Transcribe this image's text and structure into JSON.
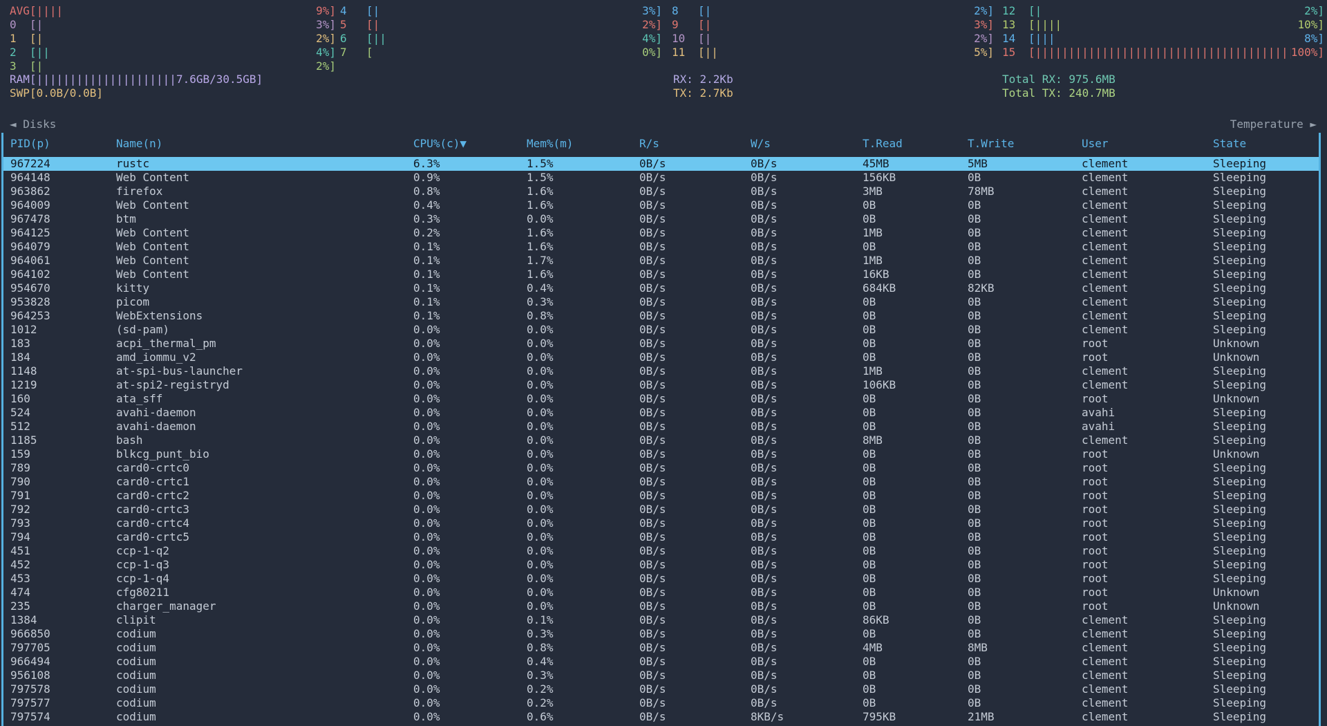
{
  "cpu": {
    "columns": [
      {
        "meters": [
          {
            "label": "AVG",
            "pct": "9%",
            "bars": 4,
            "color": "#de7270"
          },
          {
            "label": "0",
            "pct": "3%",
            "bars": 1,
            "color": "#b495c8"
          },
          {
            "label": "1",
            "pct": "2%",
            "bars": 1,
            "color": "#e2bf7e"
          },
          {
            "label": "2",
            "pct": "4%",
            "bars": 2,
            "color": "#5cc6b5"
          },
          {
            "label": "3",
            "pct": "2%",
            "bars": 1,
            "color": "#a6cc7a"
          }
        ]
      },
      {
        "meters": [
          {
            "label": "4",
            "pct": "3%",
            "bars": 1,
            "color": "#5fb2ea"
          },
          {
            "label": "5",
            "pct": "2%",
            "bars": 1,
            "color": "#e0766f"
          },
          {
            "label": "6",
            "pct": "4%",
            "bars": 2,
            "color": "#5cc6b5"
          },
          {
            "label": "7",
            "pct": "0%",
            "bars": 0,
            "color": "#a6cc7a"
          }
        ]
      },
      {
        "meters": [
          {
            "label": "8",
            "pct": "2%",
            "bars": 1,
            "color": "#5fb2ea"
          },
          {
            "label": "9",
            "pct": "3%",
            "bars": 1,
            "color": "#e0766f"
          },
          {
            "label": "10",
            "pct": "2%",
            "bars": 1,
            "color": "#b495c8"
          },
          {
            "label": "11",
            "pct": "5%",
            "bars": 2,
            "color": "#e2bf7e"
          }
        ]
      },
      {
        "meters": [
          {
            "label": "12",
            "pct": "2%",
            "bars": 1,
            "color": "#5cc6b5"
          },
          {
            "label": "13",
            "pct": "10%",
            "bars": 4,
            "color": "#b3cc6e"
          },
          {
            "label": "14",
            "pct": "8%",
            "bars": 3,
            "color": "#5fb2ea"
          },
          {
            "label": "15",
            "pct": "100%",
            "bars": 60,
            "color": "#e0766f"
          }
        ]
      }
    ]
  },
  "memory": {
    "ram": {
      "label": "RAM",
      "value": "7.6GB/30.5GB",
      "bars": 21,
      "color": "#b9a8e8"
    },
    "swp": {
      "label": "SWP",
      "value": "0.0B/0.0B",
      "bars": 0,
      "color": "#e2bf7e"
    }
  },
  "network": {
    "rx": {
      "text": "RX: 2.2Kb",
      "color": "#b5abe5"
    },
    "tx": {
      "text": "TX: 2.7Kb",
      "color": "#e2bf7e"
    },
    "total_rx": {
      "text": "Total RX: 975.6MB",
      "color": "#6fc9b2"
    },
    "total_tx": {
      "text": "Total TX: 240.7MB",
      "color": "#aed584"
    }
  },
  "nav": {
    "left": "◄ Disks",
    "right": "Temperature ►"
  },
  "process_table": {
    "headers": [
      "PID(p)",
      "Name(n)",
      "CPU%(c)▼",
      "Mem%(m)",
      "R/s",
      "W/s",
      "T.Read",
      "T.Write",
      "User",
      "State"
    ],
    "selected_index": 0,
    "rows": [
      [
        "967224",
        "rustc",
        "6.3%",
        "1.5%",
        "0B/s",
        "0B/s",
        "45MB",
        "5MB",
        "clement",
        "Sleeping"
      ],
      [
        "964148",
        "Web Content",
        "0.9%",
        "1.5%",
        "0B/s",
        "0B/s",
        "156KB",
        "0B",
        "clement",
        "Sleeping"
      ],
      [
        "963862",
        "firefox",
        "0.8%",
        "1.6%",
        "0B/s",
        "0B/s",
        "3MB",
        "78MB",
        "clement",
        "Sleeping"
      ],
      [
        "964009",
        "Web Content",
        "0.4%",
        "1.6%",
        "0B/s",
        "0B/s",
        "0B",
        "0B",
        "clement",
        "Sleeping"
      ],
      [
        "967478",
        "btm",
        "0.3%",
        "0.0%",
        "0B/s",
        "0B/s",
        "0B",
        "0B",
        "clement",
        "Sleeping"
      ],
      [
        "964125",
        "Web Content",
        "0.2%",
        "1.6%",
        "0B/s",
        "0B/s",
        "1MB",
        "0B",
        "clement",
        "Sleeping"
      ],
      [
        "964079",
        "Web Content",
        "0.1%",
        "1.6%",
        "0B/s",
        "0B/s",
        "0B",
        "0B",
        "clement",
        "Sleeping"
      ],
      [
        "964061",
        "Web Content",
        "0.1%",
        "1.7%",
        "0B/s",
        "0B/s",
        "1MB",
        "0B",
        "clement",
        "Sleeping"
      ],
      [
        "964102",
        "Web Content",
        "0.1%",
        "1.6%",
        "0B/s",
        "0B/s",
        "16KB",
        "0B",
        "clement",
        "Sleeping"
      ],
      [
        "954670",
        "kitty",
        "0.1%",
        "0.4%",
        "0B/s",
        "0B/s",
        "684KB",
        "82KB",
        "clement",
        "Sleeping"
      ],
      [
        "953828",
        "picom",
        "0.1%",
        "0.3%",
        "0B/s",
        "0B/s",
        "0B",
        "0B",
        "clement",
        "Sleeping"
      ],
      [
        "964253",
        "WebExtensions",
        "0.1%",
        "0.8%",
        "0B/s",
        "0B/s",
        "0B",
        "0B",
        "clement",
        "Sleeping"
      ],
      [
        "1012",
        "(sd-pam)",
        "0.0%",
        "0.0%",
        "0B/s",
        "0B/s",
        "0B",
        "0B",
        "clement",
        "Sleeping"
      ],
      [
        "183",
        "acpi_thermal_pm",
        "0.0%",
        "0.0%",
        "0B/s",
        "0B/s",
        "0B",
        "0B",
        "root",
        "Unknown"
      ],
      [
        "184",
        "amd_iommu_v2",
        "0.0%",
        "0.0%",
        "0B/s",
        "0B/s",
        "0B",
        "0B",
        "root",
        "Unknown"
      ],
      [
        "1148",
        "at-spi-bus-launcher",
        "0.0%",
        "0.0%",
        "0B/s",
        "0B/s",
        "1MB",
        "0B",
        "clement",
        "Sleeping"
      ],
      [
        "1219",
        "at-spi2-registryd",
        "0.0%",
        "0.0%",
        "0B/s",
        "0B/s",
        "106KB",
        "0B",
        "clement",
        "Sleeping"
      ],
      [
        "160",
        "ata_sff",
        "0.0%",
        "0.0%",
        "0B/s",
        "0B/s",
        "0B",
        "0B",
        "root",
        "Unknown"
      ],
      [
        "524",
        "avahi-daemon",
        "0.0%",
        "0.0%",
        "0B/s",
        "0B/s",
        "0B",
        "0B",
        "avahi",
        "Sleeping"
      ],
      [
        "512",
        "avahi-daemon",
        "0.0%",
        "0.0%",
        "0B/s",
        "0B/s",
        "0B",
        "0B",
        "avahi",
        "Sleeping"
      ],
      [
        "1185",
        "bash",
        "0.0%",
        "0.0%",
        "0B/s",
        "0B/s",
        "8MB",
        "0B",
        "clement",
        "Sleeping"
      ],
      [
        "159",
        "blkcg_punt_bio",
        "0.0%",
        "0.0%",
        "0B/s",
        "0B/s",
        "0B",
        "0B",
        "root",
        "Unknown"
      ],
      [
        "789",
        "card0-crtc0",
        "0.0%",
        "0.0%",
        "0B/s",
        "0B/s",
        "0B",
        "0B",
        "root",
        "Sleeping"
      ],
      [
        "790",
        "card0-crtc1",
        "0.0%",
        "0.0%",
        "0B/s",
        "0B/s",
        "0B",
        "0B",
        "root",
        "Sleeping"
      ],
      [
        "791",
        "card0-crtc2",
        "0.0%",
        "0.0%",
        "0B/s",
        "0B/s",
        "0B",
        "0B",
        "root",
        "Sleeping"
      ],
      [
        "792",
        "card0-crtc3",
        "0.0%",
        "0.0%",
        "0B/s",
        "0B/s",
        "0B",
        "0B",
        "root",
        "Sleeping"
      ],
      [
        "793",
        "card0-crtc4",
        "0.0%",
        "0.0%",
        "0B/s",
        "0B/s",
        "0B",
        "0B",
        "root",
        "Sleeping"
      ],
      [
        "794",
        "card0-crtc5",
        "0.0%",
        "0.0%",
        "0B/s",
        "0B/s",
        "0B",
        "0B",
        "root",
        "Sleeping"
      ],
      [
        "451",
        "ccp-1-q2",
        "0.0%",
        "0.0%",
        "0B/s",
        "0B/s",
        "0B",
        "0B",
        "root",
        "Sleeping"
      ],
      [
        "452",
        "ccp-1-q3",
        "0.0%",
        "0.0%",
        "0B/s",
        "0B/s",
        "0B",
        "0B",
        "root",
        "Sleeping"
      ],
      [
        "453",
        "ccp-1-q4",
        "0.0%",
        "0.0%",
        "0B/s",
        "0B/s",
        "0B",
        "0B",
        "root",
        "Sleeping"
      ],
      [
        "474",
        "cfg80211",
        "0.0%",
        "0.0%",
        "0B/s",
        "0B/s",
        "0B",
        "0B",
        "root",
        "Unknown"
      ],
      [
        "235",
        "charger_manager",
        "0.0%",
        "0.0%",
        "0B/s",
        "0B/s",
        "0B",
        "0B",
        "root",
        "Unknown"
      ],
      [
        "1384",
        "clipit",
        "0.0%",
        "0.1%",
        "0B/s",
        "0B/s",
        "86KB",
        "0B",
        "clement",
        "Sleeping"
      ],
      [
        "966850",
        "codium",
        "0.0%",
        "0.3%",
        "0B/s",
        "0B/s",
        "0B",
        "0B",
        "clement",
        "Sleeping"
      ],
      [
        "797705",
        "codium",
        "0.0%",
        "0.8%",
        "0B/s",
        "0B/s",
        "4MB",
        "8MB",
        "clement",
        "Sleeping"
      ],
      [
        "966494",
        "codium",
        "0.0%",
        "0.4%",
        "0B/s",
        "0B/s",
        "0B",
        "0B",
        "clement",
        "Sleeping"
      ],
      [
        "956108",
        "codium",
        "0.0%",
        "0.3%",
        "0B/s",
        "0B/s",
        "0B",
        "0B",
        "clement",
        "Sleeping"
      ],
      [
        "797578",
        "codium",
        "0.0%",
        "0.2%",
        "0B/s",
        "0B/s",
        "0B",
        "0B",
        "clement",
        "Sleeping"
      ],
      [
        "797577",
        "codium",
        "0.0%",
        "0.2%",
        "0B/s",
        "0B/s",
        "0B",
        "0B",
        "clement",
        "Sleeping"
      ],
      [
        "797574",
        "codium",
        "0.0%",
        "0.6%",
        "0B/s",
        "8KB/s",
        "795KB",
        "21MB",
        "clement",
        "Sleeping"
      ]
    ]
  }
}
